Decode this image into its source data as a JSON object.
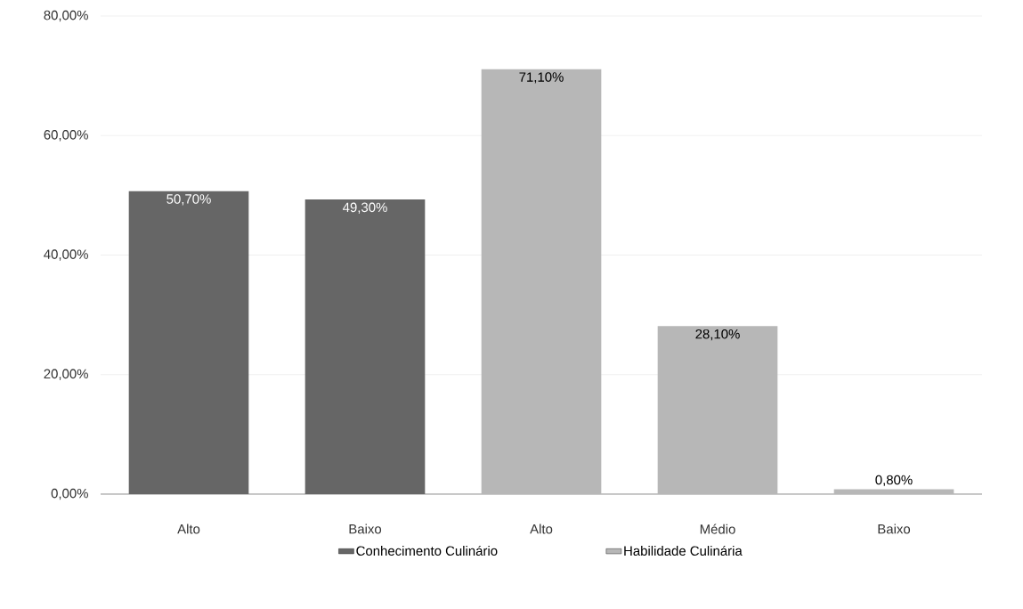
{
  "chart_data": {
    "type": "bar",
    "categories": [
      "Alto",
      "Baixo",
      "Alto",
      "Médio",
      "Baixo"
    ],
    "series": [
      {
        "name": "Conhecimento Culinário",
        "color": "#666666",
        "values": [
          50.7,
          49.3,
          null,
          null,
          null
        ],
        "value_labels": [
          "50,70%",
          "49,30%",
          null,
          null,
          null
        ]
      },
      {
        "name": "Habilidade Culinária",
        "color": "#b7b7b7",
        "values": [
          null,
          null,
          71.1,
          28.1,
          0.8
        ],
        "value_labels": [
          null,
          null,
          "71,10%",
          "28,10%",
          "0,80%"
        ]
      }
    ],
    "ylim": [
      0,
      80
    ],
    "yticks": [
      {
        "value": 0,
        "label": "0,00%"
      },
      {
        "value": 20,
        "label": "20,00%"
      },
      {
        "value": 40,
        "label": "40,00%"
      },
      {
        "value": 60,
        "label": "60,00%"
      },
      {
        "value": 80,
        "label": "80,00%"
      }
    ],
    "grid": "y",
    "legend": "bottom"
  }
}
